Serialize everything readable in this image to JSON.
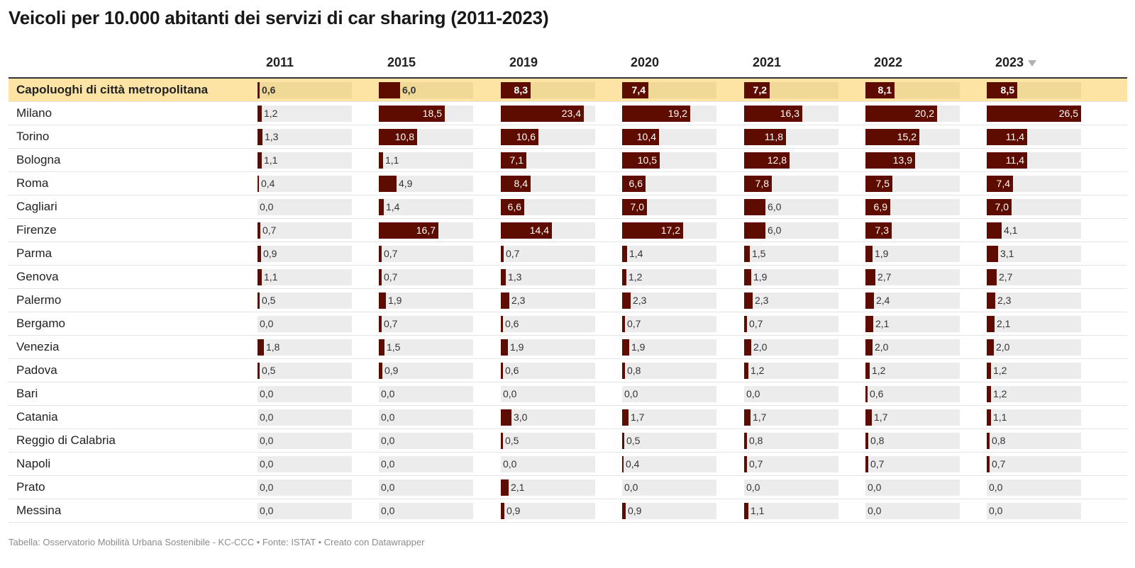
{
  "title": "Veicoli per 10.000 abitanti dei servizi di car sharing  (2011-2023)",
  "footer": "Tabella: Osservatorio Mobilità Urbana Sostenibile - KC-CCC • Fonte: ISTAT • Creato con Datawrapper",
  "colors": {
    "bar": "#5e0c00",
    "track": "#ececec",
    "highlight_row": "#fde4a5",
    "highlight_track": "#f0d896"
  },
  "sort_indicator": "sort-descending-icon",
  "chart_data": {
    "type": "table",
    "title": "Veicoli per 10.000 abitanti dei servizi di car sharing  (2011-2023)",
    "columns": [
      "2011",
      "2015",
      "2019",
      "2020",
      "2021",
      "2022",
      "2023"
    ],
    "sorted_by": "2023",
    "bar_max": 26.5,
    "rows": [
      {
        "label": "Capoluoghi di città metropolitana",
        "highlight": true,
        "values": [
          0.6,
          6.0,
          8.3,
          7.4,
          7.2,
          8.1,
          8.5
        ],
        "display": [
          "0,6",
          "6,0",
          "8,3",
          "7,4",
          "7,2",
          "8,1",
          "8,5"
        ]
      },
      {
        "label": "Milano",
        "values": [
          1.2,
          18.5,
          23.4,
          19.2,
          16.3,
          20.2,
          26.5
        ],
        "display": [
          "1,2",
          "18,5",
          "23,4",
          "19,2",
          "16,3",
          "20,2",
          "26,5"
        ]
      },
      {
        "label": "Torino",
        "values": [
          1.3,
          10.8,
          10.6,
          10.4,
          11.8,
          15.2,
          11.4
        ],
        "display": [
          "1,3",
          "10,8",
          "10,6",
          "10,4",
          "11,8",
          "15,2",
          "11,4"
        ]
      },
      {
        "label": "Bologna",
        "values": [
          1.1,
          1.1,
          7.1,
          10.5,
          12.8,
          13.9,
          11.4
        ],
        "display": [
          "1,1",
          "1,1",
          "7,1",
          "10,5",
          "12,8",
          "13,9",
          "11,4"
        ]
      },
      {
        "label": "Roma",
        "values": [
          0.4,
          4.9,
          8.4,
          6.6,
          7.8,
          7.5,
          7.4
        ],
        "display": [
          "0,4",
          "4,9",
          "8,4",
          "6,6",
          "7,8",
          "7,5",
          "7,4"
        ]
      },
      {
        "label": "Cagliari",
        "values": [
          0.0,
          1.4,
          6.6,
          7.0,
          6.0,
          6.9,
          7.0
        ],
        "display": [
          "0,0",
          "1,4",
          "6,6",
          "7,0",
          "6,0",
          "6,9",
          "7,0"
        ]
      },
      {
        "label": "Firenze",
        "values": [
          0.7,
          16.7,
          14.4,
          17.2,
          6.0,
          7.3,
          4.1
        ],
        "display": [
          "0,7",
          "16,7",
          "14,4",
          "17,2",
          "6,0",
          "7,3",
          "4,1"
        ]
      },
      {
        "label": "Parma",
        "values": [
          0.9,
          0.7,
          0.7,
          1.4,
          1.5,
          1.9,
          3.1
        ],
        "display": [
          "0,9",
          "0,7",
          "0,7",
          "1,4",
          "1,5",
          "1,9",
          "3,1"
        ]
      },
      {
        "label": "Genova",
        "values": [
          1.1,
          0.7,
          1.3,
          1.2,
          1.9,
          2.7,
          2.7
        ],
        "display": [
          "1,1",
          "0,7",
          "1,3",
          "1,2",
          "1,9",
          "2,7",
          "2,7"
        ]
      },
      {
        "label": "Palermo",
        "values": [
          0.5,
          1.9,
          2.3,
          2.3,
          2.3,
          2.4,
          2.3
        ],
        "display": [
          "0,5",
          "1,9",
          "2,3",
          "2,3",
          "2,3",
          "2,4",
          "2,3"
        ]
      },
      {
        "label": "Bergamo",
        "values": [
          0.0,
          0.7,
          0.6,
          0.7,
          0.7,
          2.1,
          2.1
        ],
        "display": [
          "0,0",
          "0,7",
          "0,6",
          "0,7",
          "0,7",
          "2,1",
          "2,1"
        ]
      },
      {
        "label": "Venezia",
        "values": [
          1.8,
          1.5,
          1.9,
          1.9,
          2.0,
          2.0,
          2.0
        ],
        "display": [
          "1,8",
          "1,5",
          "1,9",
          "1,9",
          "2,0",
          "2,0",
          "2,0"
        ]
      },
      {
        "label": "Padova",
        "values": [
          0.5,
          0.9,
          0.6,
          0.8,
          1.2,
          1.2,
          1.2
        ],
        "display": [
          "0,5",
          "0,9",
          "0,6",
          "0,8",
          "1,2",
          "1,2",
          "1,2"
        ]
      },
      {
        "label": "Bari",
        "values": [
          0.0,
          0.0,
          0.0,
          0.0,
          0.0,
          0.6,
          1.2
        ],
        "display": [
          "0,0",
          "0,0",
          "0,0",
          "0,0",
          "0,0",
          "0,6",
          "1,2"
        ]
      },
      {
        "label": "Catania",
        "values": [
          0.0,
          0.0,
          3.0,
          1.7,
          1.7,
          1.7,
          1.1
        ],
        "display": [
          "0,0",
          "0,0",
          "3,0",
          "1,7",
          "1,7",
          "1,7",
          "1,1"
        ]
      },
      {
        "label": "Reggio di Calabria",
        "values": [
          0.0,
          0.0,
          0.5,
          0.5,
          0.8,
          0.8,
          0.8
        ],
        "display": [
          "0,0",
          "0,0",
          "0,5",
          "0,5",
          "0,8",
          "0,8",
          "0,8"
        ]
      },
      {
        "label": "Napoli",
        "values": [
          0.0,
          0.0,
          0.0,
          0.4,
          0.7,
          0.7,
          0.7
        ],
        "display": [
          "0,0",
          "0,0",
          "0,0",
          "0,4",
          "0,7",
          "0,7",
          "0,7"
        ]
      },
      {
        "label": "Prato",
        "values": [
          0.0,
          0.0,
          2.1,
          0.0,
          0.0,
          0.0,
          0.0
        ],
        "display": [
          "0,0",
          "0,0",
          "2,1",
          "0,0",
          "0,0",
          "0,0",
          "0,0"
        ]
      },
      {
        "label": "Messina",
        "values": [
          0.0,
          0.0,
          0.9,
          0.9,
          1.1,
          0.0,
          0.0
        ],
        "display": [
          "0,0",
          "0,0",
          "0,9",
          "0,9",
          "1,1",
          "0,0",
          "0,0"
        ]
      }
    ]
  }
}
